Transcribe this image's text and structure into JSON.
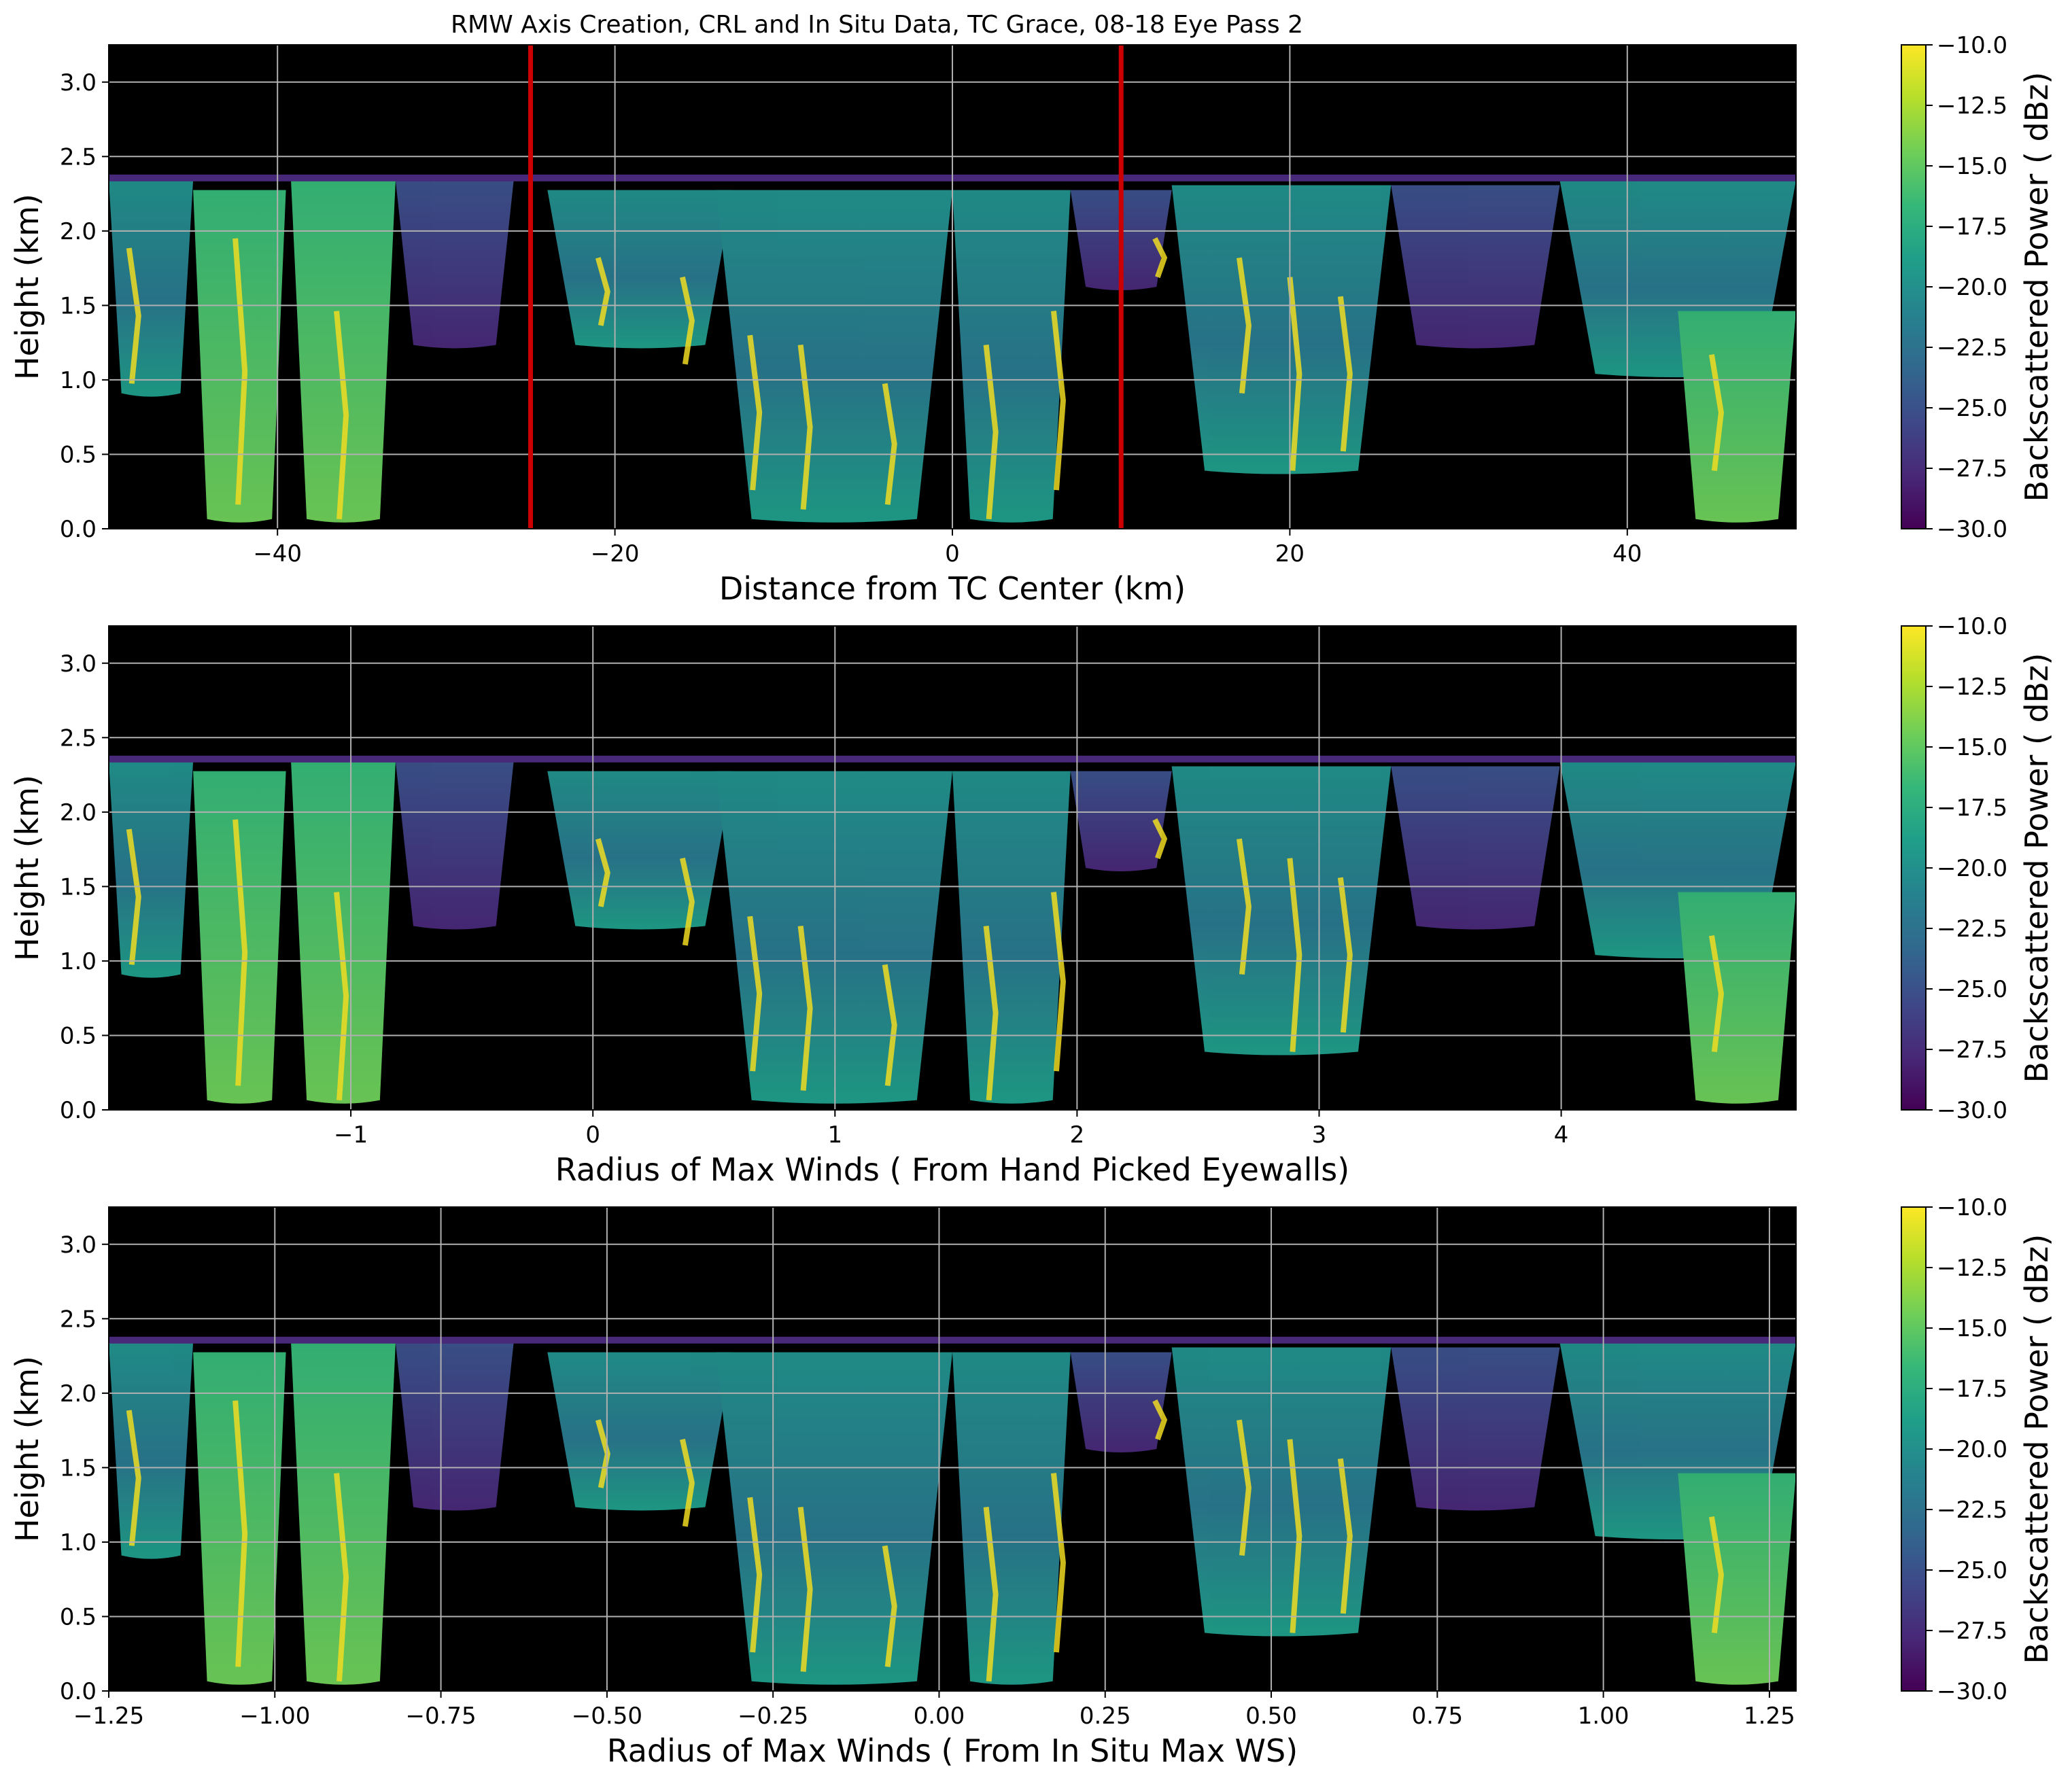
{
  "figure": {
    "title": "RMW Axis Creation, CRL and In Situ Data, TC Grace, 08-18 Eye Pass 2"
  },
  "colormap": {
    "name": "viridis",
    "stops": [
      "#440154",
      "#482878",
      "#3e4989",
      "#31688e",
      "#26828e",
      "#1f9e89",
      "#35b779",
      "#6ece58",
      "#b5de2b",
      "#fde725"
    ],
    "background": "#000000",
    "eyewall_marker_color": "#cc0000"
  },
  "chart_data": [
    {
      "type": "heatmap",
      "xlabel": "Distance from TC Center (km)",
      "ylabel": "Height (km)",
      "xlim": [
        -50,
        50
      ],
      "ylim": [
        0,
        3.25
      ],
      "xticks": [
        -40,
        -20,
        0,
        20,
        40
      ],
      "xtick_labels": [
        "−40",
        "−20",
        "0",
        "20",
        "40"
      ],
      "yticks": [
        0.0,
        0.5,
        1.0,
        1.5,
        2.0,
        2.5,
        3.0
      ],
      "ytick_labels": [
        "0.0",
        "0.5",
        "1.0",
        "1.5",
        "2.0",
        "2.5",
        "3.0"
      ],
      "grid": true,
      "vlines": [
        -25,
        10
      ],
      "colorbar": {
        "label": "Backscattered Power ( dBz)",
        "range": [
          -30,
          -10
        ],
        "ticks": [
          -10,
          -12.5,
          -15,
          -17.5,
          -20,
          -22.5,
          -25,
          -27.5,
          -30
        ],
        "tick_labels": [
          "−10.0",
          "−12.5",
          "−15.0",
          "−17.5",
          "−20.0",
          "−22.5",
          "−25.0",
          "−27.5",
          "−30.0"
        ]
      }
    },
    {
      "type": "heatmap",
      "xlabel": "Radius of Max Winds ( From Hand Picked Eyewalls)",
      "ylabel": "Height (km)",
      "xlim": [
        -2.0,
        4.97
      ],
      "ylim": [
        0,
        3.25
      ],
      "xticks": [
        -1,
        0,
        1,
        2,
        3,
        4
      ],
      "xtick_labels": [
        "−1",
        "0",
        "1",
        "2",
        "3",
        "4"
      ],
      "yticks": [
        0.0,
        0.5,
        1.0,
        1.5,
        2.0,
        2.5,
        3.0
      ],
      "ytick_labels": [
        "0.0",
        "0.5",
        "1.0",
        "1.5",
        "2.0",
        "2.5",
        "3.0"
      ],
      "grid": true,
      "colorbar": {
        "label": "Backscattered Power ( dBz)",
        "range": [
          -30,
          -10
        ],
        "ticks": [
          -10,
          -12.5,
          -15,
          -17.5,
          -20,
          -22.5,
          -25,
          -27.5,
          -30
        ],
        "tick_labels": [
          "−10.0",
          "−12.5",
          "−15.0",
          "−17.5",
          "−20.0",
          "−22.5",
          "−25.0",
          "−27.5",
          "−30.0"
        ]
      }
    },
    {
      "type": "heatmap",
      "xlabel": "Radius of Max Winds ( From In Situ Max WS)",
      "ylabel": "Height (km)",
      "xlim": [
        -1.25,
        1.29
      ],
      "ylim": [
        0,
        3.25
      ],
      "xticks": [
        -1.25,
        -1.0,
        -0.75,
        -0.5,
        -0.25,
        0.0,
        0.25,
        0.5,
        0.75,
        1.0,
        1.25
      ],
      "xtick_labels": [
        "−1.25",
        "−1.00",
        "−0.75",
        "−0.50",
        "−0.25",
        "0.00",
        "0.25",
        "0.50",
        "0.75",
        "1.00",
        "1.25"
      ],
      "yticks": [
        0.0,
        0.5,
        1.0,
        1.5,
        2.0,
        2.5,
        3.0
      ],
      "ytick_labels": [
        "0.0",
        "0.5",
        "1.0",
        "1.5",
        "2.0",
        "2.5",
        "3.0"
      ],
      "grid": true,
      "colorbar": {
        "label": "Backscattered Power ( dBz)",
        "range": [
          -30,
          -10
        ],
        "ticks": [
          -10,
          -12.5,
          -15,
          -17.5,
          -20,
          -22.5,
          -25,
          -27.5,
          -30
        ],
        "tick_labels": [
          "−10.0",
          "−12.5",
          "−15.0",
          "−17.5",
          "−20.0",
          "−22.5",
          "−25.0",
          "−27.5",
          "−30.0"
        ]
      }
    }
  ]
}
